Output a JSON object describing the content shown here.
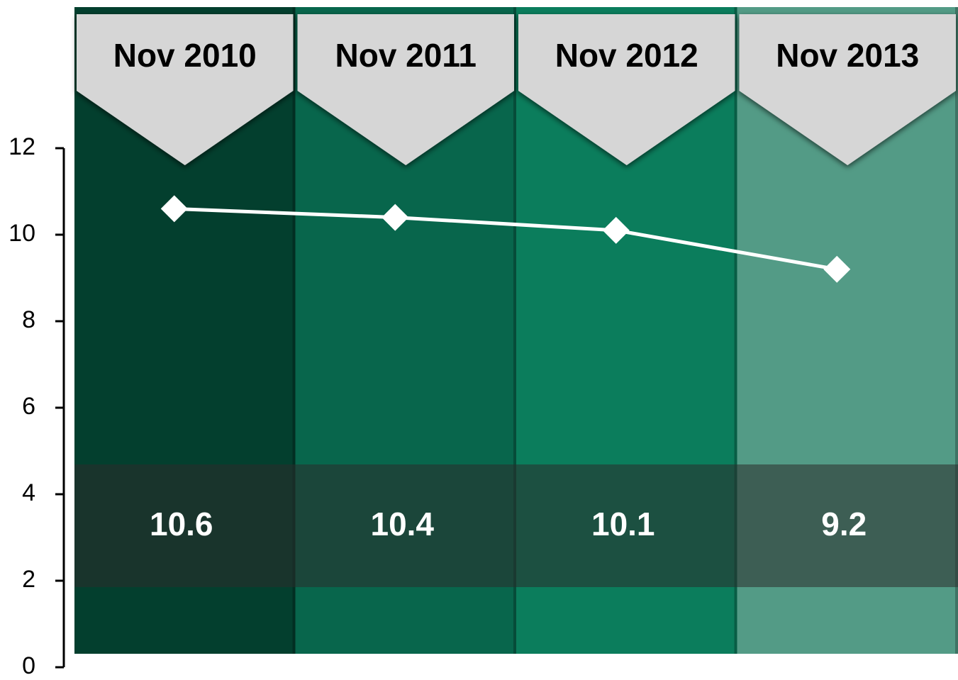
{
  "chart_data": {
    "type": "line",
    "categories": [
      "Nov 2010",
      "Nov 2011",
      "Nov 2012",
      "Nov 2013"
    ],
    "series": [
      {
        "color": "#ffffff",
        "values": [
          10.6,
          10.4,
          10.1,
          9.2
        ]
      }
    ],
    "category_colors": [
      "#033f2e",
      "#08664c",
      "#0b7d5c",
      "#539b86"
    ],
    "ylim": [
      0,
      12
    ],
    "yticks": [
      0,
      2,
      4,
      6,
      8,
      10,
      12
    ]
  }
}
